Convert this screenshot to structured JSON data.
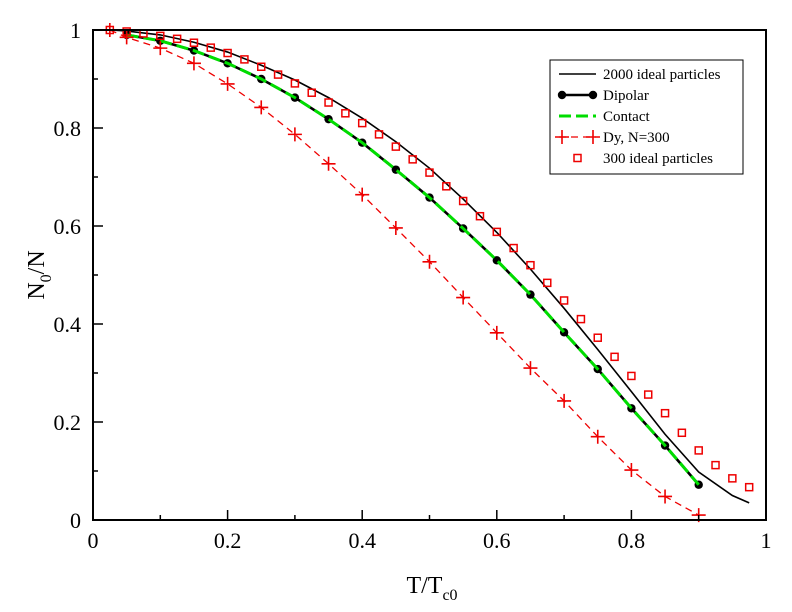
{
  "chart_data": {
    "type": "line",
    "title": "",
    "xlabel": {
      "main": "T/T",
      "sub": "c0"
    },
    "ylabel": {
      "main": "N",
      "sub": "0",
      "rest": "/N"
    },
    "xlim": [
      0,
      1
    ],
    "ylim": [
      0,
      1
    ],
    "grid": false,
    "legend_position": "top-right",
    "x_ticks": [
      {
        "value": 0,
        "label": "0"
      },
      {
        "value": 0.2,
        "label": "0.2"
      },
      {
        "value": 0.4,
        "label": "0.4"
      },
      {
        "value": 0.6,
        "label": "0.6"
      },
      {
        "value": 0.8,
        "label": "0.8"
      },
      {
        "value": 1,
        "label": "1"
      }
    ],
    "y_ticks": [
      {
        "value": 0,
        "label": "0"
      },
      {
        "value": 0.2,
        "label": "0.2"
      },
      {
        "value": 0.4,
        "label": "0.4"
      },
      {
        "value": 0.6,
        "label": "0.6"
      },
      {
        "value": 0.8,
        "label": "0.8"
      },
      {
        "value": 1,
        "label": "1"
      }
    ],
    "series": [
      {
        "name": "2000 ideal particles",
        "style": "solid-line",
        "color": "#000000",
        "x": [
          0.025,
          0.05,
          0.1,
          0.15,
          0.2,
          0.25,
          0.3,
          0.35,
          0.4,
          0.45,
          0.5,
          0.55,
          0.6,
          0.65,
          0.7,
          0.75,
          0.8,
          0.85,
          0.9,
          0.95,
          0.975
        ],
        "y": [
          1.0,
          0.998,
          0.99,
          0.975,
          0.955,
          0.928,
          0.898,
          0.862,
          0.82,
          0.772,
          0.718,
          0.655,
          0.587,
          0.512,
          0.432,
          0.348,
          0.262,
          0.175,
          0.098,
          0.05,
          0.035
        ]
      },
      {
        "name": "Dipolar",
        "style": "line-circles",
        "color": "#000000",
        "x": [
          0.05,
          0.1,
          0.15,
          0.2,
          0.25,
          0.3,
          0.35,
          0.4,
          0.45,
          0.5,
          0.55,
          0.6,
          0.65,
          0.7,
          0.75,
          0.8,
          0.85,
          0.9
        ],
        "y": [
          0.99,
          0.978,
          0.958,
          0.932,
          0.9,
          0.862,
          0.818,
          0.77,
          0.715,
          0.658,
          0.595,
          0.53,
          0.46,
          0.383,
          0.308,
          0.228,
          0.152,
          0.072
        ]
      },
      {
        "name": "Contact",
        "style": "dash-line",
        "color": "#00dd00",
        "x": [
          0.05,
          0.1,
          0.15,
          0.2,
          0.25,
          0.3,
          0.35,
          0.4,
          0.45,
          0.5,
          0.55,
          0.6,
          0.65,
          0.7,
          0.75,
          0.8,
          0.85,
          0.9
        ],
        "y": [
          0.99,
          0.978,
          0.958,
          0.932,
          0.9,
          0.862,
          0.818,
          0.77,
          0.715,
          0.658,
          0.595,
          0.53,
          0.46,
          0.383,
          0.308,
          0.228,
          0.152,
          0.072
        ]
      },
      {
        "name": "Dy, N=300",
        "style": "dashed-plus",
        "color": "#ee0000",
        "x": [
          0.025,
          0.05,
          0.1,
          0.15,
          0.2,
          0.25,
          0.3,
          0.35,
          0.4,
          0.45,
          0.5,
          0.55,
          0.6,
          0.65,
          0.7,
          0.75,
          0.8,
          0.85,
          0.9
        ],
        "y": [
          1.0,
          0.985,
          0.963,
          0.932,
          0.89,
          0.842,
          0.787,
          0.727,
          0.664,
          0.596,
          0.527,
          0.454,
          0.382,
          0.31,
          0.243,
          0.17,
          0.102,
          0.048,
          0.01
        ]
      },
      {
        "name": "300 ideal particles",
        "style": "open-squares",
        "color": "#ee0000",
        "x": [
          0.025,
          0.05,
          0.075,
          0.1,
          0.125,
          0.15,
          0.175,
          0.2,
          0.225,
          0.25,
          0.275,
          0.3,
          0.325,
          0.35,
          0.375,
          0.4,
          0.425,
          0.45,
          0.475,
          0.5,
          0.525,
          0.55,
          0.575,
          0.6,
          0.625,
          0.65,
          0.675,
          0.7,
          0.725,
          0.75,
          0.775,
          0.8,
          0.825,
          0.85,
          0.875,
          0.9,
          0.925,
          0.95,
          0.975
        ],
        "y": [
          1.0,
          0.997,
          0.993,
          0.988,
          0.982,
          0.974,
          0.964,
          0.953,
          0.94,
          0.925,
          0.909,
          0.891,
          0.872,
          0.852,
          0.83,
          0.81,
          0.787,
          0.762,
          0.736,
          0.709,
          0.681,
          0.651,
          0.62,
          0.588,
          0.555,
          0.52,
          0.484,
          0.448,
          0.41,
          0.372,
          0.333,
          0.294,
          0.256,
          0.218,
          0.178,
          0.142,
          0.112,
          0.085,
          0.067
        ]
      }
    ]
  }
}
